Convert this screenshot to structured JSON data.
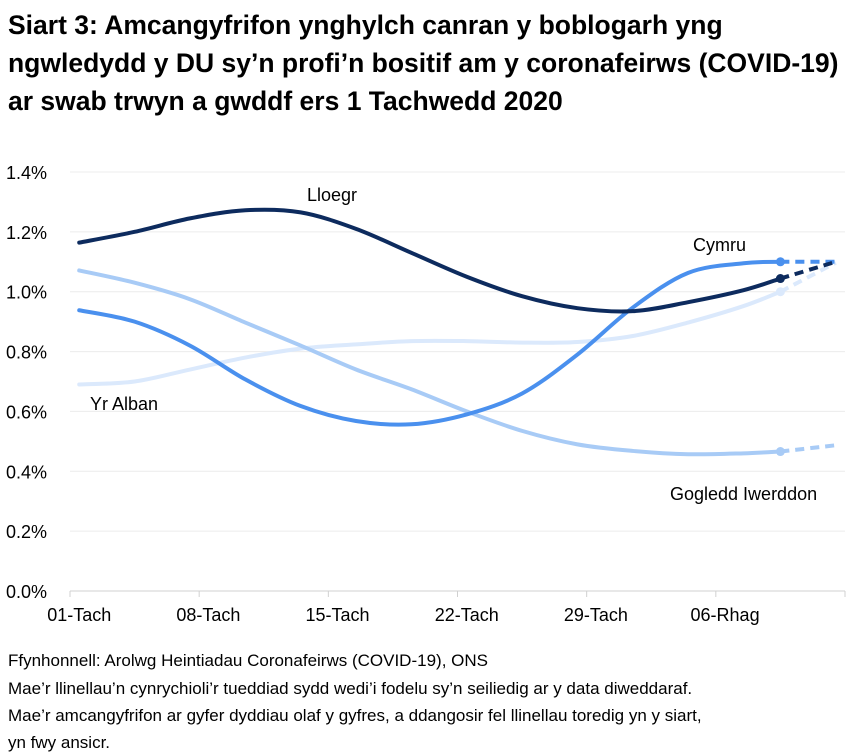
{
  "chart_data": {
    "type": "line",
    "title": "Siart 3: Amcangyfrifon ynghylch canran y boblogarh yng ngwledydd y DU sy’n profi’n bositif am y coronafeirws (COVID-19) ar swab trwyn a gwddf ers 1 Tachwedd 2020",
    "xlabel": "",
    "ylabel": "",
    "x_tick_labels": [
      "01-Tach",
      "08-Tach",
      "15-Tach",
      "22-Tach",
      "29-Tach",
      "06-Rhag"
    ],
    "y_tick_labels": [
      "0.0%",
      "0.2%",
      "0.4%",
      "0.6%",
      "0.8%",
      "1.0%",
      "1.2%",
      "1.4%"
    ],
    "ylim": [
      0,
      1.4
    ],
    "xlim": [
      "2020-11-01",
      "2020-12-12"
    ],
    "grid": "horizontal",
    "legend": "none (direct labels)",
    "x": [
      "2020-11-01",
      "2020-11-04",
      "2020-11-07",
      "2020-11-10",
      "2020-11-13",
      "2020-11-16",
      "2020-11-19",
      "2020-11-22",
      "2020-11-25",
      "2020-11-28",
      "2020-12-01",
      "2020-12-04",
      "2020-12-07",
      "2020-12-09",
      "2020-12-12"
    ],
    "dashed_from": "2020-12-09",
    "series": [
      {
        "name": "Yr Alban",
        "color": "#dbe9fc",
        "values": [
          0.69,
          0.7,
          0.74,
          0.78,
          0.81,
          0.824,
          0.835,
          0.835,
          0.83,
          0.832,
          0.852,
          0.897,
          0.952,
          1.0,
          1.097
        ]
      },
      {
        "name": "Gogledd Iwerddon",
        "color": "#a8cbf6",
        "values": [
          1.071,
          1.03,
          0.975,
          0.897,
          0.82,
          0.74,
          0.674,
          0.6,
          0.535,
          0.49,
          0.468,
          0.457,
          0.46,
          0.466,
          0.487
        ]
      },
      {
        "name": "Cymru",
        "color": "#4a90ee",
        "values": [
          0.938,
          0.9,
          0.82,
          0.707,
          0.618,
          0.568,
          0.557,
          0.59,
          0.66,
          0.79,
          0.947,
          1.063,
          1.095,
          1.1,
          1.1
        ]
      },
      {
        "name": "Lloegr",
        "color": "#0d2b5e",
        "values": [
          1.164,
          1.2,
          1.245,
          1.272,
          1.265,
          1.21,
          1.13,
          1.05,
          0.985,
          0.945,
          0.935,
          0.965,
          1.005,
          1.044,
          1.1
        ]
      }
    ]
  },
  "footer": {
    "source": "Ffynhonnell: Arolwg Heintiadau Coronafeirws (COVID-19), ONS",
    "note1": "Mae’r llinellau’n cynrychioli’r tueddiad sydd wedi’i fodelu sy’n seiliedig ar y data diweddaraf.",
    "note2": "Mae’r amcangyfrifon ar gyfer dyddiau olaf y gyfres, a ddangosir fel llinellau toredig yn y siart,",
    "note3": "yn fwy ansicr."
  }
}
